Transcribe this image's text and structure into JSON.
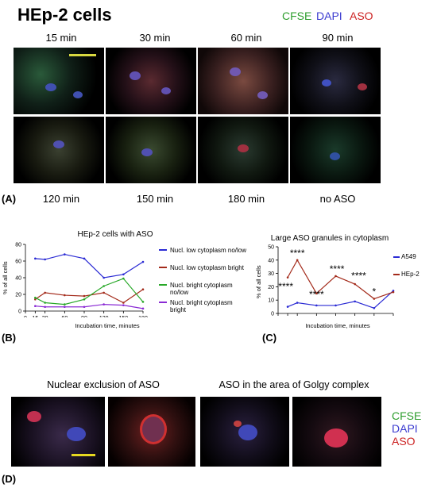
{
  "figure": {
    "title": "HEp-2 cells",
    "stain_legend": [
      {
        "label": "CFSE",
        "color": "#2e9e2e"
      },
      {
        "label": "DAPI",
        "color": "#3b3bd0"
      },
      {
        "label": "ASO",
        "color": "#cc2222"
      }
    ],
    "top_time_labels": [
      "15 min",
      "30 min",
      "60 min",
      "90 min"
    ],
    "bottom_time_labels": [
      "120 min",
      "150 min",
      "180 min",
      "no ASO"
    ],
    "panel_a": "(A)",
    "panel_b": "(B)",
    "panel_c": "(C)",
    "panel_d": "(D)",
    "panel_d_titles": [
      "Nuclear exclusion of ASO",
      "ASO in the area of Golgy complex"
    ],
    "panel_d_legend": [
      {
        "label": "CFSE",
        "color": "#2e9e2e"
      },
      {
        "label": "DAPI",
        "color": "#3b3bd0"
      },
      {
        "label": "ASO",
        "color": "#cc2222"
      }
    ]
  },
  "chart_data": [
    {
      "type": "line",
      "title": "HEp-2 cells with ASO",
      "xlabel": "Incubation time, minutes",
      "ylabel": "% of all cells",
      "x": [
        15,
        30,
        60,
        90,
        120,
        150,
        180
      ],
      "x_ticks": [
        "0",
        "15",
        "30",
        "60",
        "90",
        "120",
        "150",
        "180"
      ],
      "xlim": [
        0,
        180
      ],
      "ylim": [
        0,
        80
      ],
      "y_ticks": [
        "0",
        "20",
        "40",
        "60",
        "80"
      ],
      "legend_position": "right",
      "series": [
        {
          "name": "Nucl. low cytoplasm no/low",
          "color": "#2a2ad4",
          "values": [
            63,
            62,
            68,
            63,
            40,
            44,
            59
          ]
        },
        {
          "name": "Nucl. low cytoplasm bright",
          "color": "#a32a1a",
          "values": [
            14,
            22,
            19,
            18,
            22,
            10,
            26
          ]
        },
        {
          "name": "Nucl. bright cytoplasm no/low",
          "color": "#28a828",
          "values": [
            16,
            10,
            8,
            14,
            30,
            39,
            11
          ]
        },
        {
          "name": "Nucl. bright cytoplasm bright",
          "color": "#8a2ad4",
          "values": [
            6,
            5,
            5,
            5,
            8,
            7,
            3
          ]
        }
      ]
    },
    {
      "type": "line",
      "title": "Large ASO granules in cytoplasm",
      "xlabel": "Incubation time, minutes",
      "ylabel": "% of all cells",
      "x": [
        15,
        30,
        60,
        90,
        120,
        150,
        180
      ],
      "x_ticks": [
        "0",
        "15",
        "30",
        "60",
        "90",
        "120",
        "150",
        "180"
      ],
      "xlim": [
        0,
        180
      ],
      "ylim": [
        0,
        50
      ],
      "y_ticks": [
        "0",
        "10",
        "20",
        "30",
        "40",
        "50"
      ],
      "legend_position": "right",
      "series": [
        {
          "name": "A549",
          "color": "#2a2ad4",
          "values": [
            5,
            8,
            6,
            6,
            9,
            4,
            17
          ]
        },
        {
          "name": "HEp-2",
          "color": "#a32a1a",
          "values": [
            27,
            40,
            15,
            28,
            22,
            11,
            16
          ]
        }
      ],
      "annotations": [
        "****",
        "****",
        "****",
        "****",
        "****",
        "*"
      ]
    }
  ]
}
